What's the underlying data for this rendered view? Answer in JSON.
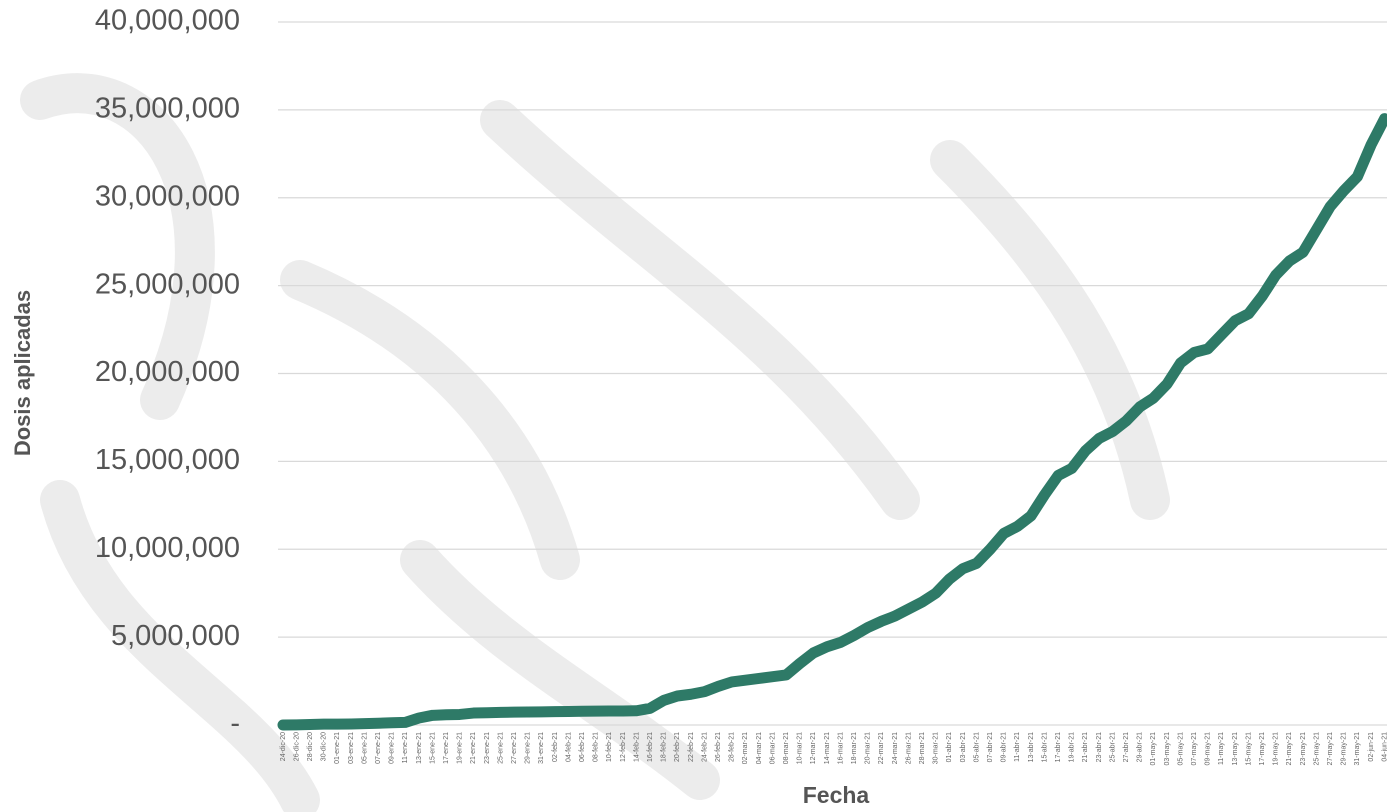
{
  "chart_data": {
    "type": "line",
    "x_label": "Fecha",
    "y_label": "Dosis aplicadas",
    "categories": [
      "24-dic-20",
      "26-dic-20",
      "28-dic-20",
      "30-dic-20",
      "01-ene-21",
      "03-ene-21",
      "05-ene-21",
      "07-ene-21",
      "09-ene-21",
      "11-ene-21",
      "13-ene-21",
      "15-ene-21",
      "17-ene-21",
      "19-ene-21",
      "21-ene-21",
      "23-ene-21",
      "25-ene-21",
      "27-ene-21",
      "29-ene-21",
      "31-ene-21",
      "02-feb-21",
      "04-feb-21",
      "06-feb-21",
      "08-feb-21",
      "10-feb-21",
      "12-feb-21",
      "14-feb-21",
      "16-feb-21",
      "18-feb-21",
      "20-feb-21",
      "22-feb-21",
      "24-feb-21",
      "26-feb-21",
      "28-feb-21",
      "02-mar-21",
      "04-mar-21",
      "06-mar-21",
      "08-mar-21",
      "10-mar-21",
      "12-mar-21",
      "14-mar-21",
      "16-mar-21",
      "18-mar-21",
      "20-mar-21",
      "22-mar-21",
      "24-mar-21",
      "26-mar-21",
      "28-mar-21",
      "30-mar-21",
      "01-abr-21",
      "03-abr-21",
      "05-abr-21",
      "07-abr-21",
      "09-abr-21",
      "11-abr-21",
      "13-abr-21",
      "15-abr-21",
      "17-abr-21",
      "19-abr-21",
      "21-abr-21",
      "23-abr-21",
      "25-abr-21",
      "27-abr-21",
      "29-abr-21",
      "01-may-21",
      "03-may-21",
      "05-may-21",
      "07-may-21",
      "09-may-21",
      "11-may-21",
      "13-may-21",
      "15-may-21",
      "17-may-21",
      "19-may-21",
      "21-may-21",
      "23-may-21",
      "25-may-21",
      "27-may-21",
      "29-may-21",
      "31-may-21",
      "02-jun-21",
      "04-jun-21"
    ],
    "series": [
      {
        "color": "#2e7a67",
        "values": [
          3000,
          10000,
          30000,
          50000,
          50000,
          60000,
          80000,
          100000,
          130000,
          150000,
          400000,
          550000,
          580000,
          600000,
          680000,
          700000,
          720000,
          730000,
          740000,
          750000,
          760000,
          770000,
          780000,
          790000,
          800000,
          800000,
          810000,
          950000,
          1400000,
          1650000,
          1750000,
          1900000,
          2200000,
          2450000,
          2550000,
          2650000,
          2750000,
          2850000,
          3500000,
          4100000,
          4450000,
          4700000,
          5100000,
          5550000,
          5900000,
          6200000,
          6600000,
          7000000,
          7500000,
          8300000,
          8900000,
          9200000,
          10000000,
          10900000,
          11300000,
          11900000,
          13100000,
          14200000,
          14600000,
          15600000,
          16300000,
          16700000,
          17300000,
          18100000,
          18600000,
          19400000,
          20600000,
          21200000,
          21400000,
          22200000,
          23000000,
          23400000,
          24400000,
          25600000,
          26400000,
          26900000,
          28200000,
          29500000,
          30400000,
          31200000,
          33000000,
          34500000
        ]
      }
    ],
    "ylim": [
      0,
      40000000
    ],
    "yticks": [
      {
        "value": 0,
        "label": "-"
      },
      {
        "value": 5000000,
        "label": "5,000,000"
      },
      {
        "value": 10000000,
        "label": "10,000,000"
      },
      {
        "value": 15000000,
        "label": "15,000,000"
      },
      {
        "value": 20000000,
        "label": "20,000,000"
      },
      {
        "value": 25000000,
        "label": "25,000,000"
      },
      {
        "value": 30000000,
        "label": "30,000,000"
      },
      {
        "value": 35000000,
        "label": "35,000,000"
      },
      {
        "value": 40000000,
        "label": "40,000,000"
      }
    ],
    "grid": true
  }
}
